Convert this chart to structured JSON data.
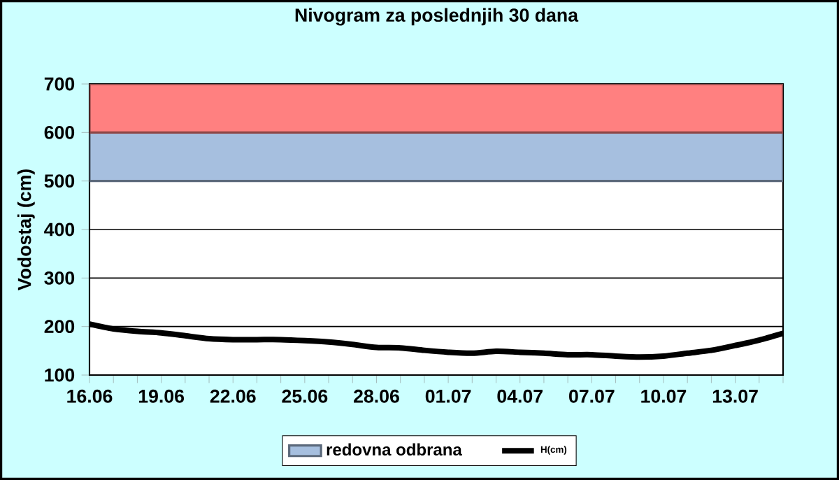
{
  "chart_data": {
    "type": "line",
    "title": "Nivogram za poslednjih 30 dana",
    "ylabel": "Vodostaj (cm)",
    "categories": [
      "16.06",
      null,
      null,
      "19.06",
      null,
      null,
      "22.06",
      null,
      null,
      "25.06",
      null,
      null,
      "28.06",
      null,
      null,
      "01.07",
      null,
      null,
      "04.07",
      null,
      null,
      "07.07",
      null,
      null,
      "10.07",
      null,
      null,
      "13.07",
      null,
      null
    ],
    "series": [
      {
        "name": "H(cm)",
        "color": "#000000",
        "values": [
          205,
          195,
          190,
          187,
          181,
          175,
          173,
          173,
          173,
          171,
          168,
          163,
          157,
          156,
          151,
          147,
          145,
          149,
          147,
          145,
          142,
          142,
          139,
          137,
          139,
          145,
          151,
          161,
          172,
          186
        ]
      }
    ],
    "ylim": [
      100,
      700
    ],
    "yticks": [
      100,
      200,
      300,
      400,
      500,
      600,
      700
    ],
    "grid": "y",
    "legend": "bottom",
    "bands": [
      {
        "axis": "y",
        "from": 500,
        "to": 600,
        "label": "redovna odbrana",
        "color": "#a6bfdf"
      },
      {
        "axis": "y",
        "from": 600,
        "to": 700,
        "color": "#ff8080"
      }
    ]
  }
}
